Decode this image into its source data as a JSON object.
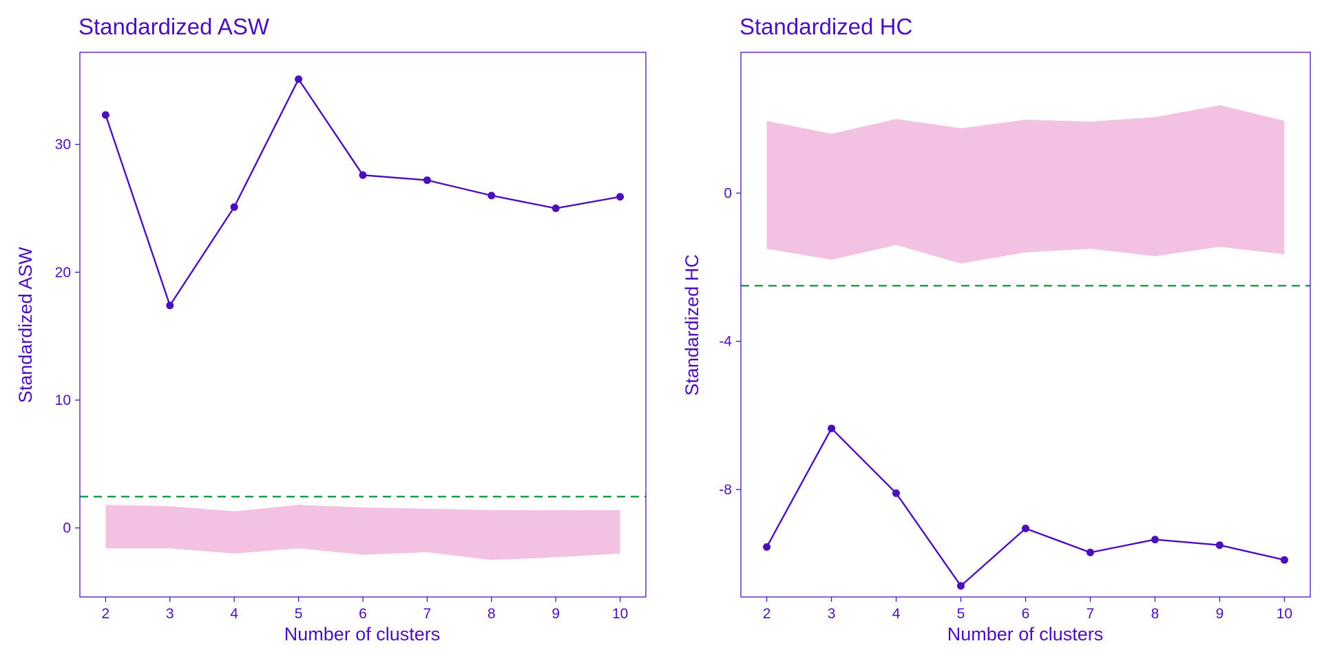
{
  "colors": {
    "text": "#4b0fbd",
    "line": "#4b0fbd",
    "band": "#f3c1e1",
    "threshold": "#1e9a4c",
    "background": "#ffffff"
  },
  "chart_data": [
    {
      "type": "line",
      "title": "Standardized ASW",
      "xlabel": "Number of clusters",
      "ylabel": "Standardized ASW",
      "x": [
        2,
        3,
        4,
        5,
        6,
        7,
        8,
        9,
        10
      ],
      "xlim": [
        1.6,
        10.4
      ],
      "ylim": [
        -5.4,
        37.2
      ],
      "yticks": [
        0,
        10,
        20,
        30
      ],
      "grid": false,
      "series": [
        {
          "values": [
            32.3,
            17.4,
            25.1,
            35.1,
            27.6,
            27.2,
            26.0,
            25.0,
            25.9
          ]
        }
      ],
      "band": {
        "lower": [
          -1.6,
          -1.6,
          -2.0,
          -1.6,
          -2.1,
          -1.9,
          -2.5,
          -2.3,
          -2.0
        ],
        "upper": [
          1.8,
          1.7,
          1.3,
          1.8,
          1.6,
          1.5,
          1.4,
          1.4,
          1.4
        ]
      },
      "threshold": 2.45
    },
    {
      "type": "line",
      "title": "Standardized HC",
      "xlabel": "Number of clusters",
      "ylabel": "Standardized HC",
      "x": [
        2,
        3,
        4,
        5,
        6,
        7,
        8,
        9,
        10
      ],
      "xlim": [
        1.6,
        10.4
      ],
      "ylim": [
        -10.9,
        3.8
      ],
      "yticks": [
        -8,
        -4,
        0
      ],
      "grid": false,
      "series": [
        {
          "values": [
            -9.55,
            -6.35,
            -8.1,
            -10.6,
            -9.05,
            -9.7,
            -9.35,
            -9.5,
            -9.9
          ]
        }
      ],
      "band": {
        "lower": [
          -1.5,
          -1.8,
          -1.4,
          -1.9,
          -1.6,
          -1.5,
          -1.7,
          -1.45,
          -1.65
        ],
        "upper": [
          1.95,
          1.6,
          2.0,
          1.75,
          1.98,
          1.93,
          2.05,
          2.37,
          1.95
        ]
      },
      "threshold": -2.5
    }
  ]
}
